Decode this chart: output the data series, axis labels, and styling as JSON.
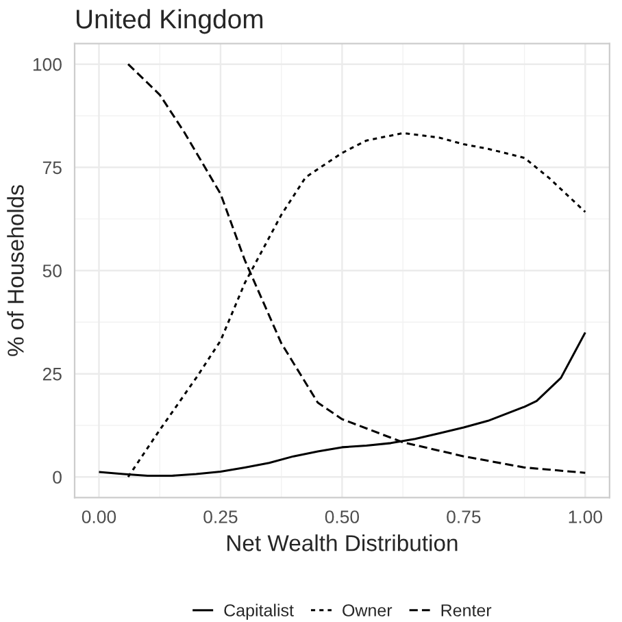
{
  "chart_data": {
    "type": "line",
    "title": "United Kingdom",
    "xlabel": "Net Wealth Distribution",
    "ylabel": "% of Households",
    "xlim": [
      -0.05,
      1.05
    ],
    "ylim": [
      -5,
      105
    ],
    "xticks": [
      {
        "value": 0,
        "label": "0.00"
      },
      {
        "value": 0.25,
        "label": "0.25"
      },
      {
        "value": 0.5,
        "label": "0.50"
      },
      {
        "value": 0.75,
        "label": "0.75"
      },
      {
        "value": 1,
        "label": "1.00"
      }
    ],
    "yticks": [
      0,
      25,
      50,
      75,
      100
    ],
    "grid": true,
    "legend": "bottom",
    "series": [
      {
        "name": "Capitalist",
        "color": "#000000",
        "line_style": "solid",
        "x": [
          0,
          0.05,
          0.1,
          0.15,
          0.2,
          0.25,
          0.3,
          0.35,
          0.4,
          0.45,
          0.5,
          0.55,
          0.6,
          0.65,
          0.7,
          0.75,
          0.8,
          0.875,
          0.9,
          0.95,
          1.0
        ],
        "values": [
          1.2,
          0.7,
          0.3,
          0.3,
          0.7,
          1.3,
          2.3,
          3.4,
          5,
          6.2,
          7.2,
          7.6,
          8.2,
          9.2,
          10.6,
          12,
          13.6,
          17,
          18.4,
          24,
          35
        ]
      },
      {
        "name": "Owner",
        "color": "#000000",
        "line_style": "dotted",
        "x": [
          0.06,
          0.125,
          0.2,
          0.25,
          0.3,
          0.375,
          0.425,
          0.5,
          0.55,
          0.625,
          0.7,
          0.75,
          0.8,
          0.875,
          0.925,
          1.0
        ],
        "values": [
          0,
          11.4,
          24,
          33,
          47,
          63.5,
          72.6,
          78.5,
          81.5,
          83.3,
          82.2,
          80.6,
          79.5,
          77.3,
          72.5,
          64.2
        ]
      },
      {
        "name": "Renter",
        "color": "#000000",
        "line_style": "dashed",
        "x": [
          0.06,
          0.125,
          0.175,
          0.25,
          0.3,
          0.375,
          0.45,
          0.5,
          0.625,
          0.75,
          0.875,
          1.0
        ],
        "values": [
          100,
          92.6,
          83.6,
          68.6,
          52.5,
          32.4,
          18,
          14,
          8.4,
          5,
          2.3,
          1
        ]
      }
    ]
  }
}
